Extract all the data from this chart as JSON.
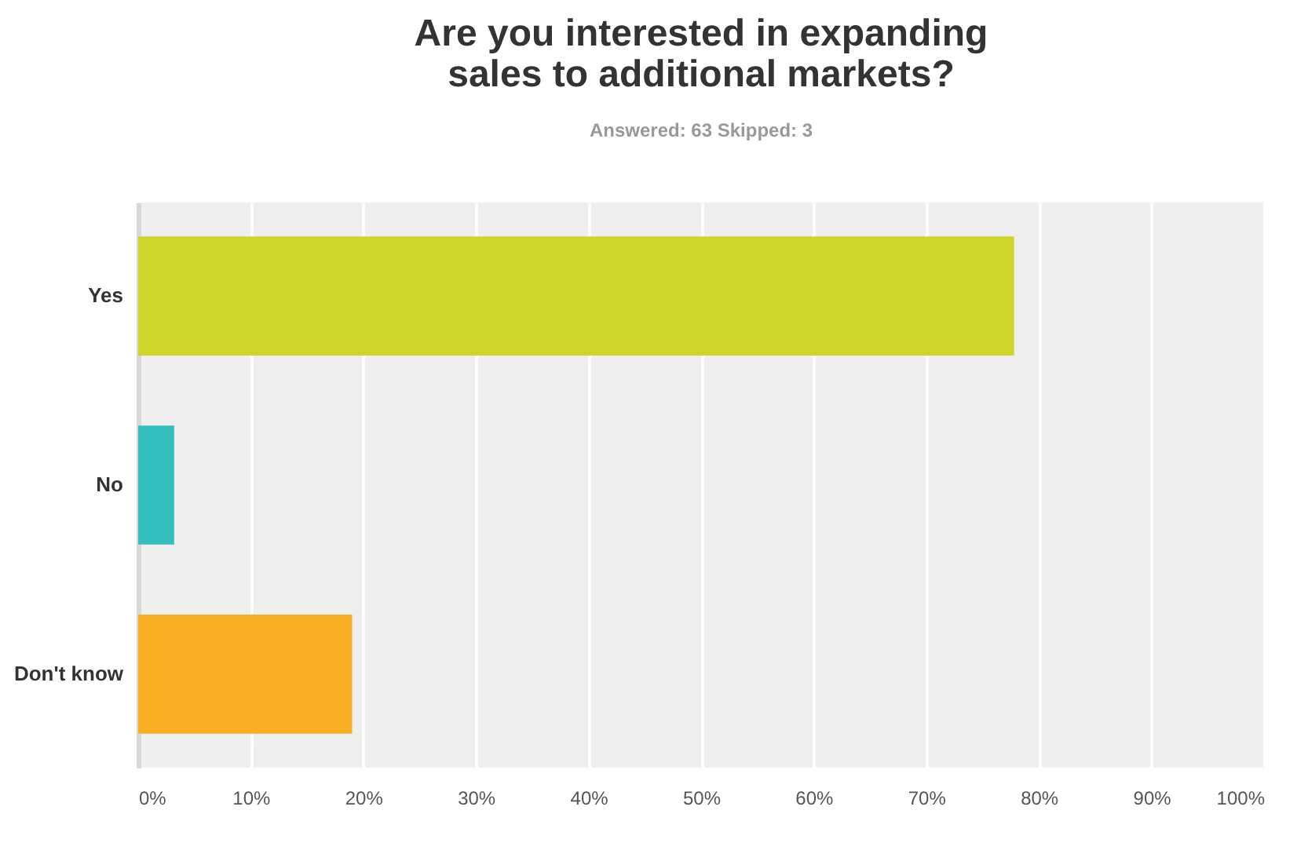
{
  "chart_data": {
    "type": "bar",
    "orientation": "horizontal",
    "title": "Are you interested in expanding sales to additional markets?",
    "subtitle": "Answered: 63    Skipped: 3",
    "categories": [
      "Yes",
      "No",
      "Don't know"
    ],
    "values": [
      77.8,
      3.2,
      19.0
    ],
    "colors": [
      "#cdd42a",
      "#35bec0",
      "#f6ae22"
    ],
    "xlim": [
      0,
      100
    ],
    "xticks": [
      {
        "value": 0,
        "label": "0%"
      },
      {
        "value": 10,
        "label": "10%"
      },
      {
        "value": 20,
        "label": "20%"
      },
      {
        "value": 30,
        "label": "30%"
      },
      {
        "value": 40,
        "label": "40%"
      },
      {
        "value": 50,
        "label": "50%"
      },
      {
        "value": 60,
        "label": "60%"
      },
      {
        "value": 70,
        "label": "70%"
      },
      {
        "value": 80,
        "label": "80%"
      },
      {
        "value": 90,
        "label": "90%"
      },
      {
        "value": 100,
        "label": "100%"
      }
    ],
    "grid": "x"
  }
}
